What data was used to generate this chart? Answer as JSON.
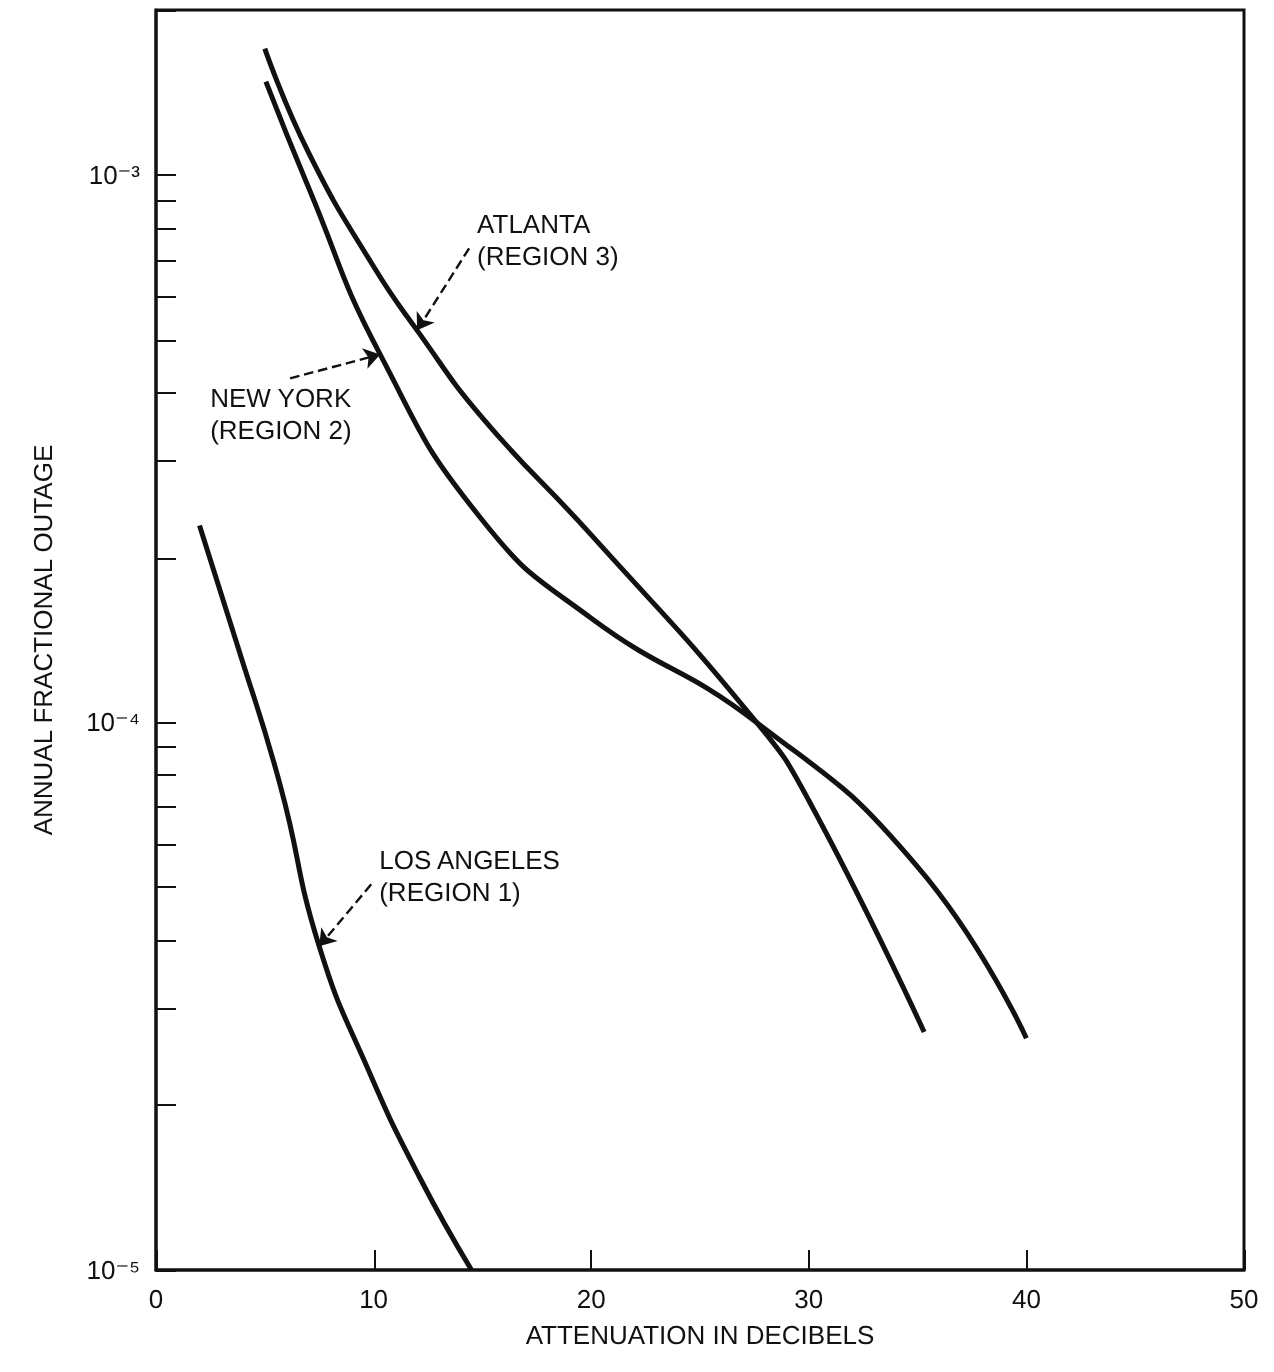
{
  "chart_data": {
    "type": "line",
    "xlabel": "ATTENUATION IN DECIBELS",
    "ylabel": "ANNUAL FRACTIONAL OUTAGE",
    "log": "y",
    "grid": false,
    "marker": "none",
    "line_style": "solid",
    "xlim": [
      0,
      50
    ],
    "xticks": [
      0,
      10,
      20,
      30,
      40,
      50
    ],
    "ylim": [
      1e-05,
      0.002
    ],
    "yticks": [
      {
        "value": 1e-05,
        "label": "10⁻⁵"
      },
      {
        "value": 2e-05,
        "label": null
      },
      {
        "value": 3e-05,
        "label": null
      },
      {
        "value": 4e-05,
        "label": null
      },
      {
        "value": 5e-05,
        "label": null
      },
      {
        "value": 6e-05,
        "label": null
      },
      {
        "value": 7e-05,
        "label": null
      },
      {
        "value": 8e-05,
        "label": null
      },
      {
        "value": 9e-05,
        "label": null
      },
      {
        "value": 0.0001,
        "label": "10⁻⁴"
      },
      {
        "value": 0.0002,
        "label": null
      },
      {
        "value": 0.0003,
        "label": null
      },
      {
        "value": 0.0004,
        "label": null
      },
      {
        "value": 0.0005,
        "label": null
      },
      {
        "value": 0.0006,
        "label": null
      },
      {
        "value": 0.0007,
        "label": null
      },
      {
        "value": 0.0008,
        "label": null
      },
      {
        "value": 0.0009,
        "label": null
      },
      {
        "value": 0.001,
        "label": "10⁻³"
      },
      {
        "value": 0.002,
        "label": null
      }
    ],
    "series": [
      {
        "color": "#111111",
        "x": [
          5.0,
          7.0,
          10,
          12,
          15,
          20,
          27.6,
          30,
          35.3
        ],
        "values": [
          0.0017,
          0.0011,
          0.00068,
          0.00052,
          0.00036,
          0.00022,
          0.0001,
          7.2e-05,
          2.72e-05
        ]
      },
      {
        "color": "#111111",
        "x": [
          5.05,
          7.0,
          10.3,
          15,
          20,
          27.6,
          35,
          40
        ],
        "values": [
          0.00148,
          0.00095,
          0.00047,
          0.000234,
          0.000155,
          0.0001,
          5.45e-05,
          2.65e-05
        ]
      },
      {
        "color": "#111111",
        "x": [
          2.0,
          3.7,
          5.7,
          7.5,
          9.8,
          12.1,
          14.5
        ],
        "values": [
          0.000229,
          0.00014,
          7.7e-05,
          3.9e-05,
          2.3e-05,
          1.48e-05,
          1e-05
        ]
      }
    ],
    "annotations": [
      {
        "text": "ATLANTA\n(REGION 3)",
        "x": 12,
        "y": 0.00052
      },
      {
        "text": "NEW YORK\n(REGION 2)",
        "x": 10.3,
        "y": 0.00047
      },
      {
        "text": "LOS ANGELES\n(REGION 1)",
        "x": 7.5,
        "y": 3.9e-05
      }
    ]
  }
}
